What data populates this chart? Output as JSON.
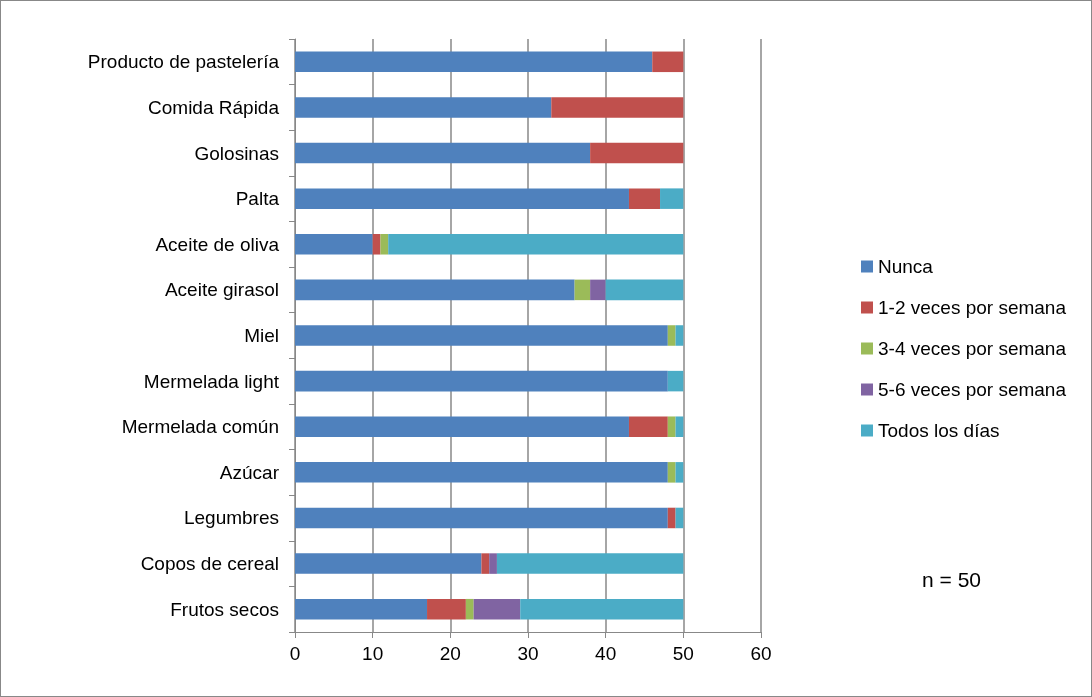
{
  "chart_data": {
    "type": "bar",
    "orientation": "horizontal",
    "stacked": true,
    "categories": [
      "Producto de pastelería",
      "Comida Rápida",
      "Golosinas",
      "Palta",
      "Aceite de oliva",
      "Aceite girasol",
      "Miel",
      "Mermelada light",
      "Mermelada común",
      "Azúcar",
      "Legumbres",
      "Copos de cereal",
      "Frutos secos"
    ],
    "series": [
      {
        "name": "Nunca",
        "color": "#4f81bd",
        "values": [
          46,
          33,
          38,
          43,
          10,
          36,
          48,
          48,
          43,
          48,
          48,
          24,
          17
        ]
      },
      {
        "name": "1-2 veces por semana",
        "color": "#c0504d",
        "values": [
          4,
          17,
          12,
          4,
          1,
          0,
          0,
          0,
          5,
          0,
          1,
          1,
          5
        ]
      },
      {
        "name": "3-4 veces por semana",
        "color": "#9bbb59",
        "values": [
          0,
          0,
          0,
          0,
          1,
          2,
          1,
          0,
          1,
          1,
          0,
          0,
          1
        ]
      },
      {
        "name": "5-6 veces por semana",
        "color": "#8064a2",
        "values": [
          0,
          0,
          0,
          0,
          0,
          2,
          0,
          0,
          0,
          0,
          0,
          1,
          6
        ]
      },
      {
        "name": "Todos los días",
        "color": "#4bacc6",
        "values": [
          0,
          0,
          0,
          3,
          38,
          10,
          1,
          2,
          1,
          1,
          1,
          24,
          21
        ]
      }
    ],
    "xlim": [
      0,
      60
    ],
    "xticks": [
      0,
      10,
      20,
      30,
      40,
      50,
      60
    ],
    "grid": "x",
    "legend": "right",
    "annotations": [
      "n = 50"
    ]
  }
}
